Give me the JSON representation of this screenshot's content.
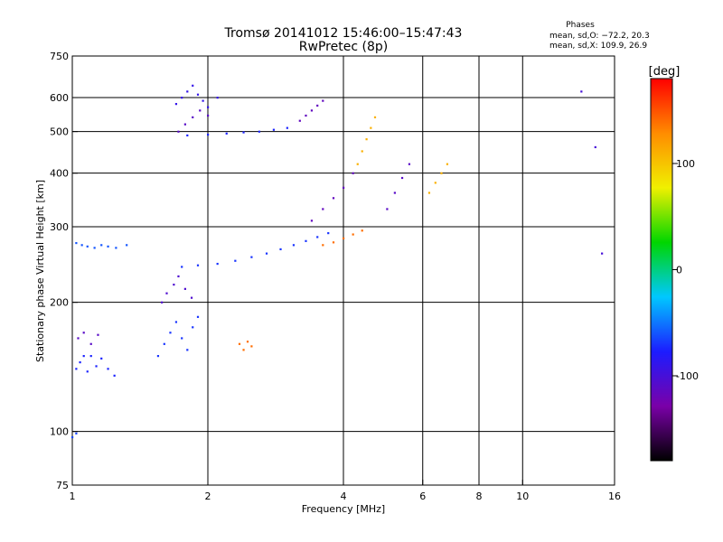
{
  "chart_data": {
    "type": "scatter",
    "title": "Tromsø 20141012 15:46:00–15:47:43",
    "subtitle": "RwPretec (8p)",
    "stats_title": "Phases",
    "stats_o": "mean, sd,O: −72.2, 20.3",
    "stats_x": "mean, sd,X: 109.9, 26.9",
    "xlabel": "Frequency [MHz]",
    "ylabel": "Stationary phase Virtual Height [km]",
    "x_scale": "log",
    "y_scale": "log",
    "xlim": [
      1,
      16
    ],
    "ylim": [
      75,
      750
    ],
    "x_ticks": [
      1,
      2,
      4,
      6,
      8,
      10,
      16
    ],
    "y_ticks": [
      75,
      100,
      200,
      300,
      400,
      500,
      600,
      750
    ],
    "x_grid": [
      2,
      4,
      6,
      8,
      10
    ],
    "y_grid": [
      100,
      200,
      300,
      400,
      500,
      600
    ],
    "grid": true,
    "colorbar": {
      "label": "[deg]",
      "min": -180,
      "max": 180,
      "ticks": [
        100,
        0,
        -100
      ],
      "colors": [
        "#000000",
        "#7a00a8",
        "#1c1cff",
        "#00c8ff",
        "#00d600",
        "#f0f000",
        "#ff8c00",
        "#ff0000"
      ]
    },
    "series": [
      {
        "x": [
          1.02,
          1.05,
          1.08,
          1.12,
          1.16,
          1.2,
          1.25,
          1.32
        ],
        "y": [
          275,
          272,
          270,
          268,
          272,
          270,
          268,
          272
        ],
        "c": -60
      },
      {
        "x": [
          1.02,
          1.04,
          1.06,
          1.08,
          1.1,
          1.13,
          1.16,
          1.2,
          1.24
        ],
        "y": [
          140,
          145,
          150,
          138,
          150,
          142,
          148,
          140,
          135
        ],
        "c": -75
      },
      {
        "x": [
          1.03,
          1.06,
          1.1,
          1.14
        ],
        "y": [
          165,
          170,
          160,
          168
        ],
        "c": -110
      },
      {
        "x": [
          1.0,
          1.02
        ],
        "y": [
          97,
          99
        ],
        "c": -65
      },
      {
        "x": [
          1.55,
          1.6,
          1.65,
          1.7,
          1.75,
          1.8,
          1.85,
          1.9
        ],
        "y": [
          150,
          160,
          170,
          180,
          165,
          155,
          175,
          185
        ],
        "c": -70
      },
      {
        "x": [
          1.58,
          1.62,
          1.68,
          1.72,
          1.78,
          1.84
        ],
        "y": [
          200,
          210,
          220,
          230,
          215,
          205
        ],
        "c": -105
      },
      {
        "x": [
          1.7,
          1.75,
          1.8,
          1.85,
          1.9,
          1.95,
          2.0,
          2.1
        ],
        "y": [
          580,
          600,
          620,
          640,
          610,
          590,
          570,
          600
        ],
        "c": -90
      },
      {
        "x": [
          1.72,
          1.78,
          1.85,
          1.92,
          2.0
        ],
        "y": [
          500,
          520,
          540,
          560,
          545
        ],
        "c": -110
      },
      {
        "x": [
          1.8,
          2.0,
          2.2,
          2.4,
          2.6,
          2.8,
          3.0
        ],
        "y": [
          490,
          492,
          495,
          498,
          500,
          505,
          510
        ],
        "c": -75
      },
      {
        "x": [
          1.75,
          1.9,
          2.1,
          2.3,
          2.5,
          2.7,
          2.9,
          3.1,
          3.3,
          3.5,
          3.7
        ],
        "y": [
          242,
          244,
          246,
          250,
          255,
          260,
          266,
          272,
          278,
          284,
          290
        ],
        "c": -70
      },
      {
        "x": [
          3.2,
          3.3,
          3.4,
          3.5,
          3.6
        ],
        "y": [
          530,
          545,
          560,
          575,
          590
        ],
        "c": -115
      },
      {
        "x": [
          3.4,
          3.6,
          3.8,
          4.0,
          4.2
        ],
        "y": [
          310,
          330,
          350,
          370,
          400
        ],
        "c": -115
      },
      {
        "x": [
          3.6,
          3.8,
          4.0,
          4.2,
          4.4
        ],
        "y": [
          272,
          276,
          282,
          288,
          294
        ],
        "c": 140
      },
      {
        "x": [
          4.3,
          4.4,
          4.5,
          4.6,
          4.7
        ],
        "y": [
          420,
          450,
          480,
          510,
          540
        ],
        "c": 110
      },
      {
        "x": [
          5.0,
          5.2,
          5.4,
          5.6
        ],
        "y": [
          330,
          360,
          390,
          420
        ],
        "c": -110
      },
      {
        "x": [
          6.2,
          6.4,
          6.6,
          6.8
        ],
        "y": [
          360,
          380,
          400,
          420
        ],
        "c": 110
      },
      {
        "x": [
          2.35,
          2.4,
          2.45,
          2.5
        ],
        "y": [
          160,
          155,
          162,
          158
        ],
        "c": 140
      },
      {
        "x": [
          13.5,
          14.5,
          15.0
        ],
        "y": [
          620,
          460,
          260
        ],
        "c": -100
      }
    ]
  }
}
